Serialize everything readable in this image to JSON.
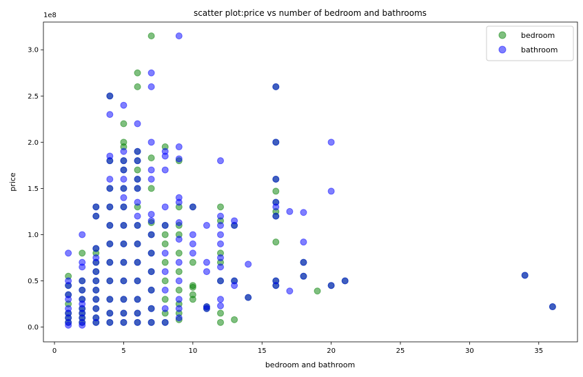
{
  "chart_data": {
    "type": "scatter",
    "title": "scatter plot:price vs number of bedroom and bathrooms",
    "xlabel": "bedroom and bathroom",
    "ylabel": "price",
    "y_offset_label": "1e8",
    "xlim": [
      -0.8,
      37.8
    ],
    "ylim": [
      -0.16,
      3.3
    ],
    "x_ticks": [
      0,
      5,
      10,
      15,
      20,
      25,
      30,
      35
    ],
    "y_ticks": [
      0.0,
      0.5,
      1.0,
      1.5,
      2.0,
      2.5,
      3.0
    ],
    "x_tick_labels": [
      "0",
      "5",
      "10",
      "15",
      "20",
      "25",
      "30",
      "35"
    ],
    "y_tick_labels": [
      "0.0",
      "0.5",
      "1.0",
      "1.5",
      "2.0",
      "2.5",
      "3.0"
    ],
    "y_unit_scale": "1e8",
    "grid": false,
    "legend_position": "top-right",
    "series": [
      {
        "name": "bedroom",
        "color": "#008000",
        "alpha": 0.5,
        "points": [
          [
            1,
            0.05
          ],
          [
            1,
            0.1
          ],
          [
            1,
            0.15
          ],
          [
            1,
            0.25
          ],
          [
            1,
            0.35
          ],
          [
            1,
            0.45
          ],
          [
            1,
            0.55
          ],
          [
            2,
            0.05
          ],
          [
            2,
            0.1
          ],
          [
            2,
            0.15
          ],
          [
            2,
            0.2
          ],
          [
            2,
            0.3
          ],
          [
            2,
            0.4
          ],
          [
            2,
            0.5
          ],
          [
            2,
            0.8
          ],
          [
            3,
            0.05
          ],
          [
            3,
            0.1
          ],
          [
            3,
            0.2
          ],
          [
            3,
            0.3
          ],
          [
            3,
            0.4
          ],
          [
            3,
            0.5
          ],
          [
            3,
            0.6
          ],
          [
            3,
            0.7
          ],
          [
            3,
            0.8
          ],
          [
            3,
            0.85
          ],
          [
            3,
            1.2
          ],
          [
            3,
            1.3
          ],
          [
            4,
            0.05
          ],
          [
            4,
            0.15
          ],
          [
            4,
            0.3
          ],
          [
            4,
            0.5
          ],
          [
            4,
            0.7
          ],
          [
            4,
            0.9
          ],
          [
            4,
            1.1
          ],
          [
            4,
            1.3
          ],
          [
            4,
            1.5
          ],
          [
            4,
            1.8
          ],
          [
            4,
            2.5
          ],
          [
            5,
            0.05
          ],
          [
            5,
            0.15
          ],
          [
            5,
            0.3
          ],
          [
            5,
            0.5
          ],
          [
            5,
            0.7
          ],
          [
            5,
            0.9
          ],
          [
            5,
            1.1
          ],
          [
            5,
            1.3
          ],
          [
            5,
            1.5
          ],
          [
            5,
            1.7
          ],
          [
            5,
            1.8
          ],
          [
            5,
            1.95
          ],
          [
            5,
            2.0
          ],
          [
            5,
            2.2
          ],
          [
            6,
            0.05
          ],
          [
            6,
            0.15
          ],
          [
            6,
            0.3
          ],
          [
            6,
            0.5
          ],
          [
            6,
            0.7
          ],
          [
            6,
            0.9
          ],
          [
            6,
            1.1
          ],
          [
            6,
            1.3
          ],
          [
            6,
            1.5
          ],
          [
            6,
            1.6
          ],
          [
            6,
            1.7
          ],
          [
            6,
            1.8
          ],
          [
            6,
            1.9
          ],
          [
            6,
            2.6
          ],
          [
            6,
            2.75
          ],
          [
            7,
            0.05
          ],
          [
            7,
            0.2
          ],
          [
            7,
            0.4
          ],
          [
            7,
            0.6
          ],
          [
            7,
            0.8
          ],
          [
            7,
            1.0
          ],
          [
            7,
            1.13
          ],
          [
            7,
            1.5
          ],
          [
            7,
            1.83
          ],
          [
            7,
            3.15
          ],
          [
            8,
            0.05
          ],
          [
            8,
            0.15
          ],
          [
            8,
            0.3
          ],
          [
            8,
            0.5
          ],
          [
            8,
            0.7
          ],
          [
            8,
            0.9
          ],
          [
            8,
            1.0
          ],
          [
            8,
            1.1
          ],
          [
            8,
            1.95
          ],
          [
            9,
            0.08
          ],
          [
            9,
            0.15
          ],
          [
            9,
            0.25
          ],
          [
            9,
            0.4
          ],
          [
            9,
            0.6
          ],
          [
            9,
            0.8
          ],
          [
            9,
            1.0
          ],
          [
            9,
            1.1
          ],
          [
            9,
            1.3
          ],
          [
            9,
            1.8
          ],
          [
            10,
            0.3
          ],
          [
            10,
            0.35
          ],
          [
            10,
            0.43
          ],
          [
            10,
            0.45
          ],
          [
            10,
            0.7
          ],
          [
            10,
            1.3
          ],
          [
            11,
            0.2
          ],
          [
            11,
            0.22
          ],
          [
            12,
            0.05
          ],
          [
            12,
            0.15
          ],
          [
            12,
            0.5
          ],
          [
            12,
            0.7
          ],
          [
            12,
            0.8
          ],
          [
            12,
            1.15
          ],
          [
            12,
            1.3
          ],
          [
            13,
            0.08
          ],
          [
            13,
            0.5
          ],
          [
            13,
            1.1
          ],
          [
            14,
            0.32
          ],
          [
            16,
            0.45
          ],
          [
            16,
            0.5
          ],
          [
            16,
            0.92
          ],
          [
            16,
            1.2
          ],
          [
            16,
            1.25
          ],
          [
            16,
            1.35
          ],
          [
            16,
            1.47
          ],
          [
            16,
            1.6
          ],
          [
            16,
            2.0
          ],
          [
            16,
            2.6
          ],
          [
            18,
            0.55
          ],
          [
            18,
            0.7
          ],
          [
            19,
            0.39
          ],
          [
            20,
            0.45
          ],
          [
            21,
            0.5
          ],
          [
            34,
            0.56
          ],
          [
            36,
            0.22
          ]
        ]
      },
      {
        "name": "bathroom",
        "color": "#0000ff",
        "alpha": 0.5,
        "points": [
          [
            1,
            0.02
          ],
          [
            1,
            0.05
          ],
          [
            1,
            0.1
          ],
          [
            1,
            0.15
          ],
          [
            1,
            0.2
          ],
          [
            1,
            0.3
          ],
          [
            1,
            0.35
          ],
          [
            1,
            0.45
          ],
          [
            1,
            0.5
          ],
          [
            1,
            0.8
          ],
          [
            2,
            0.02
          ],
          [
            2,
            0.05
          ],
          [
            2,
            0.1
          ],
          [
            2,
            0.15
          ],
          [
            2,
            0.2
          ],
          [
            2,
            0.25
          ],
          [
            2,
            0.3
          ],
          [
            2,
            0.4
          ],
          [
            2,
            0.5
          ],
          [
            2,
            0.65
          ],
          [
            2,
            0.7
          ],
          [
            2,
            1.0
          ],
          [
            3,
            0.05
          ],
          [
            3,
            0.1
          ],
          [
            3,
            0.2
          ],
          [
            3,
            0.3
          ],
          [
            3,
            0.4
          ],
          [
            3,
            0.5
          ],
          [
            3,
            0.6
          ],
          [
            3,
            0.7
          ],
          [
            3,
            0.75
          ],
          [
            3,
            0.85
          ],
          [
            3,
            1.2
          ],
          [
            3,
            1.3
          ],
          [
            4,
            0.05
          ],
          [
            4,
            0.15
          ],
          [
            4,
            0.3
          ],
          [
            4,
            0.5
          ],
          [
            4,
            0.7
          ],
          [
            4,
            0.9
          ],
          [
            4,
            1.1
          ],
          [
            4,
            1.3
          ],
          [
            4,
            1.5
          ],
          [
            4,
            1.6
          ],
          [
            4,
            1.8
          ],
          [
            4,
            1.85
          ],
          [
            4,
            2.3
          ],
          [
            4,
            2.5
          ],
          [
            5,
            0.05
          ],
          [
            5,
            0.15
          ],
          [
            5,
            0.3
          ],
          [
            5,
            0.5
          ],
          [
            5,
            0.7
          ],
          [
            5,
            0.9
          ],
          [
            5,
            1.1
          ],
          [
            5,
            1.3
          ],
          [
            5,
            1.4
          ],
          [
            5,
            1.5
          ],
          [
            5,
            1.6
          ],
          [
            5,
            1.7
          ],
          [
            5,
            1.8
          ],
          [
            5,
            1.9
          ],
          [
            5,
            2.4
          ],
          [
            6,
            0.05
          ],
          [
            6,
            0.15
          ],
          [
            6,
            0.3
          ],
          [
            6,
            0.5
          ],
          [
            6,
            0.7
          ],
          [
            6,
            0.9
          ],
          [
            6,
            1.1
          ],
          [
            6,
            1.2
          ],
          [
            6,
            1.35
          ],
          [
            6,
            1.5
          ],
          [
            6,
            1.6
          ],
          [
            6,
            1.8
          ],
          [
            6,
            1.9
          ],
          [
            6,
            2.2
          ],
          [
            7,
            0.05
          ],
          [
            7,
            0.2
          ],
          [
            7,
            0.4
          ],
          [
            7,
            0.6
          ],
          [
            7,
            0.8
          ],
          [
            7,
            1.0
          ],
          [
            7,
            1.15
          ],
          [
            7,
            1.22
          ],
          [
            7,
            1.6
          ],
          [
            7,
            1.7
          ],
          [
            7,
            2.0
          ],
          [
            7,
            2.6
          ],
          [
            7,
            2.75
          ],
          [
            8,
            0.05
          ],
          [
            8,
            0.2
          ],
          [
            8,
            0.4
          ],
          [
            8,
            0.6
          ],
          [
            8,
            0.8
          ],
          [
            8,
            1.1
          ],
          [
            8,
            1.3
          ],
          [
            8,
            1.7
          ],
          [
            8,
            1.85
          ],
          [
            8,
            1.9
          ],
          [
            9,
            0.1
          ],
          [
            9,
            0.2
          ],
          [
            9,
            0.3
          ],
          [
            9,
            0.5
          ],
          [
            9,
            0.7
          ],
          [
            9,
            0.95
          ],
          [
            9,
            1.13
          ],
          [
            9,
            1.35
          ],
          [
            9,
            1.4
          ],
          [
            9,
            1.82
          ],
          [
            9,
            1.95
          ],
          [
            9,
            3.15
          ],
          [
            10,
            0.8
          ],
          [
            10,
            0.9
          ],
          [
            10,
            1.0
          ],
          [
            10,
            1.3
          ],
          [
            11,
            0.2
          ],
          [
            11,
            0.22
          ],
          [
            11,
            0.6
          ],
          [
            11,
            0.7
          ],
          [
            11,
            1.1
          ],
          [
            12,
            0.23
          ],
          [
            12,
            0.3
          ],
          [
            12,
            0.5
          ],
          [
            12,
            0.65
          ],
          [
            12,
            0.75
          ],
          [
            12,
            0.9
          ],
          [
            12,
            1.0
          ],
          [
            12,
            1.1
          ],
          [
            12,
            1.2
          ],
          [
            12,
            1.8
          ],
          [
            13,
            0.45
          ],
          [
            13,
            0.5
          ],
          [
            13,
            1.1
          ],
          [
            13,
            1.15
          ],
          [
            14,
            0.32
          ],
          [
            14,
            0.68
          ],
          [
            16,
            0.45
          ],
          [
            16,
            0.5
          ],
          [
            16,
            1.2
          ],
          [
            16,
            1.3
          ],
          [
            16,
            1.35
          ],
          [
            16,
            1.6
          ],
          [
            16,
            2.0
          ],
          [
            16,
            2.6
          ],
          [
            17,
            0.39
          ],
          [
            17,
            1.25
          ],
          [
            18,
            0.55
          ],
          [
            18,
            0.7
          ],
          [
            18,
            0.92
          ],
          [
            18,
            1.24
          ],
          [
            20,
            0.45
          ],
          [
            20,
            1.47
          ],
          [
            20,
            2.0
          ],
          [
            21,
            0.5
          ],
          [
            34,
            0.56
          ],
          [
            36,
            0.22
          ]
        ]
      }
    ]
  }
}
